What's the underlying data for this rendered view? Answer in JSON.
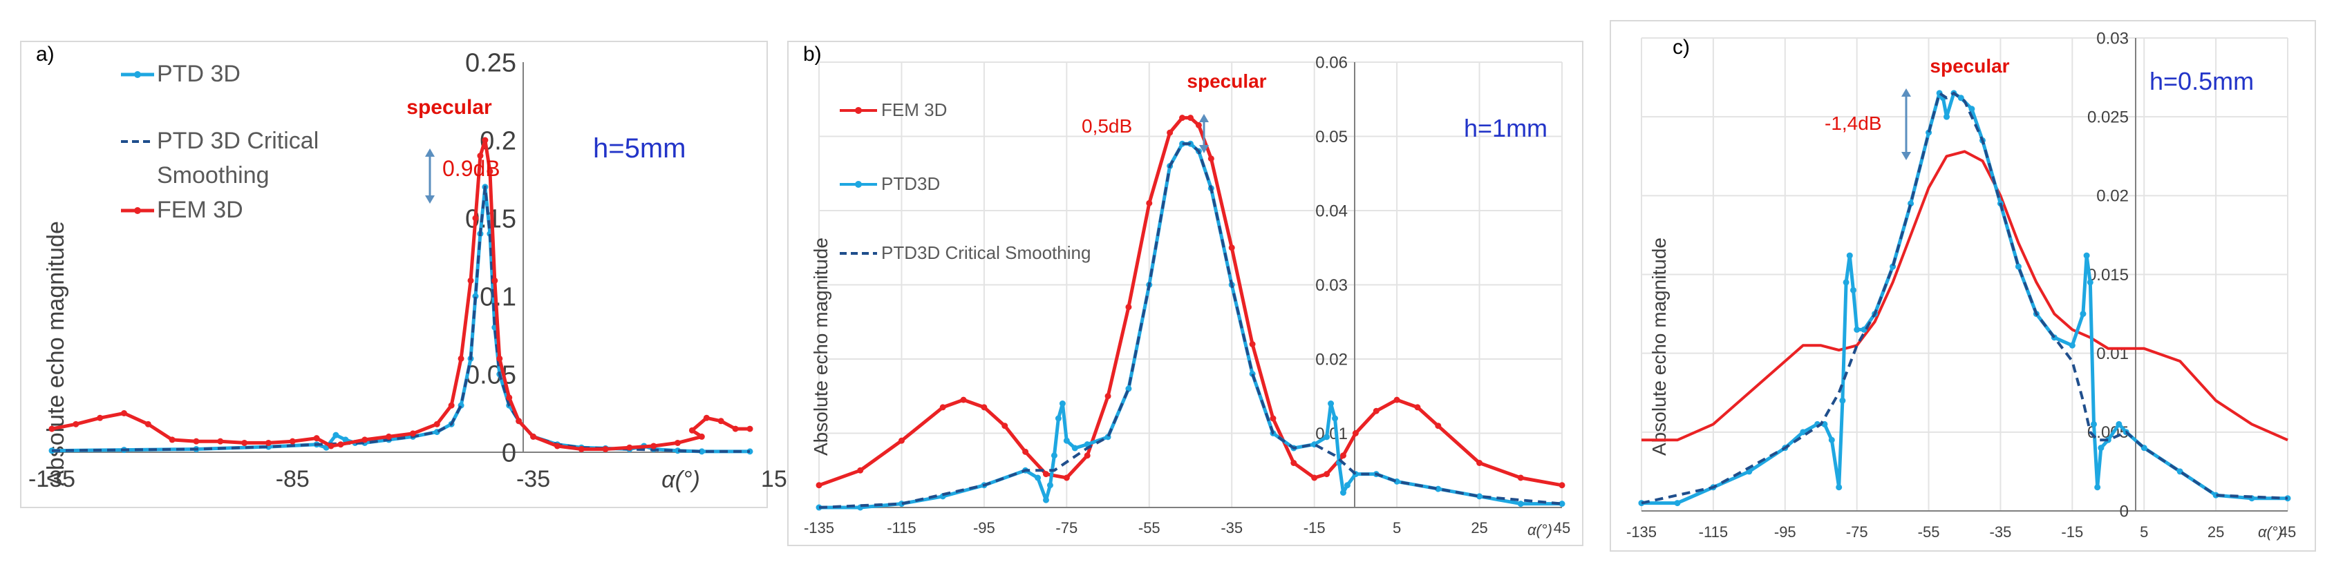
{
  "colors": {
    "ptd": "#1ea7e1",
    "fem": "#ea2224",
    "smooth": "#1f4e8c",
    "annotation_red": "#e3120b",
    "annotation_blue": "#2234c8",
    "arrow": "#5b8fbf"
  },
  "chart_data": [
    {
      "type": "line",
      "panel_label": "a)",
      "ylabel": "Absolute echo magnitude",
      "xlabel_symbol": "α(°)",
      "xlim": [
        -135,
        10
      ],
      "ylim": [
        0,
        0.25
      ],
      "x_ticks": [
        "-135",
        "-85",
        "-35",
        "15"
      ],
      "y_ticks": [
        "0",
        "0.05",
        "0.1",
        "0.15",
        "0.2",
        "0.25"
      ],
      "annotations": {
        "specular": "specular",
        "delta": "0.9dB",
        "height": "h=5mm"
      },
      "legend": [
        "PTD 3D",
        "PTD 3D Critical",
        "Smoothing",
        "FEM 3D"
      ],
      "series": [
        {
          "name": "PTD 3D",
          "style": "marker",
          "x": [
            -135,
            -120,
            -105,
            -90,
            -80,
            -78,
            -76,
            -74,
            -72,
            -70,
            -65,
            -60,
            -55,
            -52,
            -50,
            -48,
            -47,
            -46,
            -45,
            -44,
            -43,
            -42,
            -40,
            -38,
            -35,
            -30,
            -25,
            -20,
            -15,
            -12,
            -10,
            -5,
            0,
            10
          ],
          "y": [
            0.001,
            0.0015,
            0.002,
            0.0035,
            0.005,
            0.003,
            0.011,
            0.008,
            0.006,
            0.006,
            0.008,
            0.01,
            0.013,
            0.018,
            0.03,
            0.06,
            0.1,
            0.14,
            0.17,
            0.14,
            0.08,
            0.05,
            0.03,
            0.02,
            0.01,
            0.005,
            0.003,
            0.0025,
            0.002,
            0.004,
            0.002,
            0.001,
            0.0005,
            0.0005
          ]
        },
        {
          "name": "PTD 3D Critical Smoothing",
          "style": "dashed",
          "x": [
            -135,
            -120,
            -105,
            -90,
            -80,
            -70,
            -65,
            -60,
            -55,
            -52,
            -50,
            -48,
            -47,
            -46,
            -45,
            -44,
            -43,
            -42,
            -40,
            -38,
            -35,
            -30,
            -25,
            -20,
            -15,
            -10,
            -5,
            0,
            10
          ],
          "y": [
            0.001,
            0.0015,
            0.002,
            0.0035,
            0.005,
            0.006,
            0.008,
            0.01,
            0.013,
            0.018,
            0.03,
            0.06,
            0.1,
            0.14,
            0.17,
            0.14,
            0.08,
            0.05,
            0.03,
            0.02,
            0.01,
            0.005,
            0.003,
            0.0025,
            0.002,
            0.0015,
            0.001,
            0.0005,
            0.0005
          ]
        },
        {
          "name": "FEM 3D",
          "style": "marker",
          "x": [
            -135,
            -130,
            -125,
            -120,
            -115,
            -110,
            -105,
            -100,
            -95,
            -90,
            -85,
            -80,
            -77,
            -75,
            -70,
            -65,
            -60,
            -55,
            -52,
            -50,
            -48,
            -47,
            -46,
            -45,
            -44,
            -43,
            -42,
            -40,
            -38,
            -35,
            -30,
            -25,
            -20,
            -15,
            -10,
            -5,
            0,
            -2,
            1,
            4,
            7,
            10
          ],
          "y": [
            0.015,
            0.018,
            0.022,
            0.025,
            0.018,
            0.008,
            0.007,
            0.007,
            0.006,
            0.006,
            0.007,
            0.009,
            0.004,
            0.005,
            0.008,
            0.01,
            0.012,
            0.018,
            0.03,
            0.06,
            0.11,
            0.15,
            0.19,
            0.2,
            0.18,
            0.11,
            0.06,
            0.035,
            0.02,
            0.01,
            0.004,
            0.002,
            0.002,
            0.003,
            0.004,
            0.006,
            0.01,
            0.014,
            0.022,
            0.02,
            0.015,
            0.015
          ]
        }
      ]
    },
    {
      "type": "line",
      "panel_label": "b)",
      "ylabel": "Absolute echo magnitude",
      "xlabel_symbol": "α(°)",
      "xlim": [
        -135,
        45
      ],
      "ylim": [
        0,
        0.06
      ],
      "x_ticks": [
        "-135",
        "-115",
        "-95",
        "-75",
        "-55",
        "-35",
        "-15",
        "5",
        "25",
        "45"
      ],
      "y_ticks": [
        "0.01",
        "0.02",
        "0.03",
        "0.04",
        "0.05",
        "0.06"
      ],
      "annotations": {
        "specular": "specular",
        "delta": "0,5dB",
        "height": "h=1mm"
      },
      "legend": [
        "FEM 3D",
        "PTD3D",
        "PTD3D Critical Smoothing"
      ],
      "series": [
        {
          "name": "FEM 3D",
          "style": "marker",
          "x": [
            -135,
            -125,
            -115,
            -105,
            -100,
            -95,
            -90,
            -85,
            -80,
            -75,
            -70,
            -65,
            -60,
            -55,
            -50,
            -47,
            -45,
            -43,
            -40,
            -35,
            -30,
            -25,
            -20,
            -15,
            -12,
            -8,
            -5,
            0,
            5,
            10,
            15,
            25,
            35,
            45
          ],
          "y": [
            0.003,
            0.005,
            0.009,
            0.0135,
            0.0145,
            0.0135,
            0.011,
            0.0075,
            0.0045,
            0.004,
            0.007,
            0.015,
            0.027,
            0.041,
            0.0505,
            0.0525,
            0.0525,
            0.0515,
            0.047,
            0.035,
            0.022,
            0.012,
            0.006,
            0.004,
            0.0045,
            0.007,
            0.01,
            0.013,
            0.0145,
            0.0135,
            0.011,
            0.006,
            0.004,
            0.003
          ]
        },
        {
          "name": "PTD3D",
          "style": "marker",
          "x": [
            -135,
            -125,
            -115,
            -105,
            -95,
            -85,
            -82,
            -80,
            -79,
            -78,
            -77,
            -76,
            -75,
            -73,
            -70,
            -65,
            -60,
            -55,
            -50,
            -47,
            -45,
            -43,
            -40,
            -35,
            -30,
            -25,
            -20,
            -15,
            -12,
            -11,
            -10,
            -9,
            -8,
            -7,
            -5,
            0,
            5,
            15,
            25,
            35,
            45
          ],
          "y": [
            0,
            0,
            0.0005,
            0.0015,
            0.003,
            0.005,
            0.004,
            0.001,
            0.003,
            0.007,
            0.012,
            0.014,
            0.009,
            0.008,
            0.0085,
            0.0095,
            0.016,
            0.03,
            0.046,
            0.049,
            0.049,
            0.048,
            0.043,
            0.03,
            0.018,
            0.01,
            0.008,
            0.0085,
            0.0095,
            0.014,
            0.012,
            0.006,
            0.002,
            0.003,
            0.0045,
            0.0045,
            0.0035,
            0.0025,
            0.0015,
            0.0005,
            0.0005
          ]
        },
        {
          "name": "PTD3D Critical Smoothing",
          "style": "dashed",
          "x": [
            -135,
            -115,
            -95,
            -85,
            -78,
            -70,
            -65,
            -60,
            -55,
            -50,
            -47,
            -45,
            -43,
            -40,
            -35,
            -30,
            -25,
            -20,
            -15,
            -10,
            -5,
            0,
            5,
            15,
            25,
            45
          ],
          "y": [
            0,
            0.0005,
            0.003,
            0.005,
            0.005,
            0.008,
            0.0095,
            0.016,
            0.03,
            0.046,
            0.049,
            0.049,
            0.048,
            0.043,
            0.03,
            0.018,
            0.01,
            0.008,
            0.0085,
            0.007,
            0.0045,
            0.0045,
            0.0035,
            0.0025,
            0.0015,
            0.0005
          ]
        }
      ]
    },
    {
      "type": "line",
      "panel_label": "c)",
      "ylabel": "Absolute echo magnitude",
      "xlabel_symbol": "α(°)",
      "xlim": [
        -135,
        45
      ],
      "ylim": [
        0,
        0.03
      ],
      "x_ticks": [
        "-135",
        "-115",
        "-95",
        "-75",
        "-55",
        "-35",
        "-15",
        "5",
        "25",
        "45"
      ],
      "y_ticks": [
        "0",
        "0.005",
        "0.01",
        "0.015",
        "0.02",
        "0.025",
        "0.03"
      ],
      "annotations": {
        "specular": "specular",
        "delta": "-1,4dB",
        "height": "h=0.5mm"
      },
      "legend": [],
      "series": [
        {
          "name": "FEM 3D",
          "style": "line",
          "x": [
            -135,
            -125,
            -115,
            -105,
            -95,
            -90,
            -85,
            -80,
            -75,
            -70,
            -65,
            -60,
            -55,
            -50,
            -45,
            -40,
            -35,
            -30,
            -25,
            -20,
            -15,
            -10,
            -5,
            0,
            5,
            15,
            25,
            35,
            45
          ],
          "y": [
            0.0045,
            0.0045,
            0.0055,
            0.0075,
            0.0095,
            0.0105,
            0.0105,
            0.0102,
            0.0105,
            0.012,
            0.0145,
            0.0175,
            0.0205,
            0.0225,
            0.0228,
            0.0222,
            0.02,
            0.017,
            0.0145,
            0.0125,
            0.0115,
            0.011,
            0.0103,
            0.0103,
            0.0103,
            0.0095,
            0.007,
            0.0055,
            0.0045
          ]
        },
        {
          "name": "PTD3D",
          "style": "marker",
          "x": [
            -135,
            -125,
            -115,
            -105,
            -95,
            -90,
            -86,
            -84,
            -82,
            -80,
            -79,
            -78,
            -77,
            -76,
            -75,
            -73,
            -70,
            -65,
            -60,
            -55,
            -52,
            -51,
            -50,
            -48,
            -46,
            -43,
            -40,
            -35,
            -30,
            -25,
            -20,
            -15,
            -12,
            -11,
            -10,
            -9,
            -8,
            -7,
            -5,
            -2,
            0,
            5,
            15,
            25,
            35,
            45
          ],
          "y": [
            0.0005,
            0.0005,
            0.0015,
            0.0025,
            0.004,
            0.005,
            0.0055,
            0.0055,
            0.0045,
            0.0015,
            0.007,
            0.0145,
            0.0162,
            0.014,
            0.0115,
            0.0115,
            0.0125,
            0.0155,
            0.0195,
            0.024,
            0.0265,
            0.0262,
            0.025,
            0.0265,
            0.0262,
            0.0255,
            0.0235,
            0.0195,
            0.0155,
            0.0125,
            0.011,
            0.0105,
            0.0125,
            0.0162,
            0.0145,
            0.0055,
            0.0015,
            0.004,
            0.0045,
            0.0055,
            0.005,
            0.004,
            0.0025,
            0.001,
            0.0008,
            0.0008
          ]
        },
        {
          "name": "PTD3D Critical Smoothing",
          "style": "dashed",
          "x": [
            -135,
            -115,
            -95,
            -85,
            -80,
            -75,
            -70,
            -65,
            -60,
            -55,
            -52,
            -50,
            -48,
            -45,
            -40,
            -35,
            -30,
            -25,
            -20,
            -15,
            -12,
            -10,
            -8,
            -5,
            0,
            5,
            15,
            25,
            45
          ],
          "y": [
            0.0005,
            0.0015,
            0.004,
            0.0055,
            0.0075,
            0.0105,
            0.0125,
            0.0155,
            0.0195,
            0.024,
            0.0265,
            0.0262,
            0.0265,
            0.026,
            0.0235,
            0.0195,
            0.0155,
            0.0125,
            0.011,
            0.0095,
            0.007,
            0.005,
            0.0045,
            0.0045,
            0.005,
            0.004,
            0.0025,
            0.001,
            0.0008
          ]
        }
      ]
    }
  ]
}
